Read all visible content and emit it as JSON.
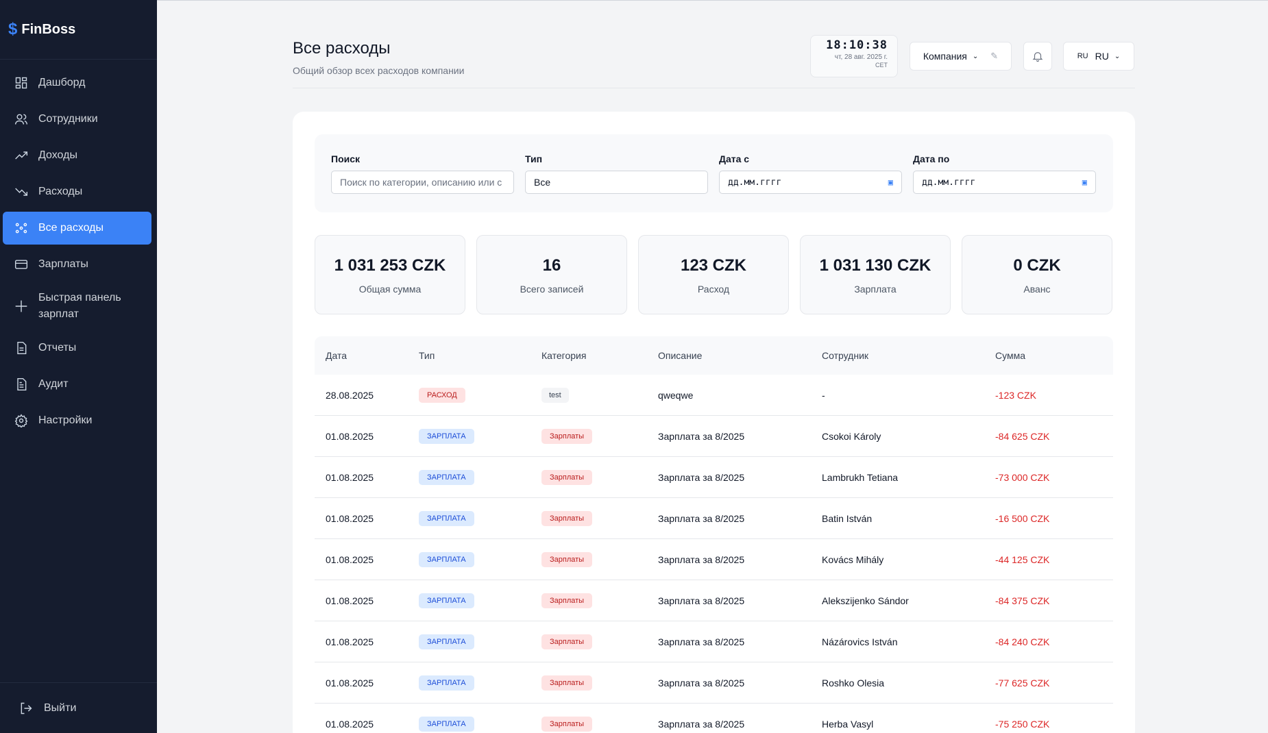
{
  "brand": {
    "symbol": "$",
    "name": "FinBoss"
  },
  "sidebar": {
    "items": [
      {
        "label": "Дашборд",
        "icon": "dashboard-icon"
      },
      {
        "label": "Сотрудники",
        "icon": "users-icon"
      },
      {
        "label": "Доходы",
        "icon": "trending-up-icon"
      },
      {
        "label": "Расходы",
        "icon": "trending-down-icon"
      },
      {
        "label": "Все расходы",
        "icon": "network-icon",
        "active": true
      },
      {
        "label": "Зарплаты",
        "icon": "card-icon"
      },
      {
        "label": "Быстрая панель зарплат",
        "icon": "sparkle-icon"
      },
      {
        "label": "Отчеты",
        "icon": "document-icon"
      },
      {
        "label": "Аудит",
        "icon": "audit-icon"
      },
      {
        "label": "Настройки",
        "icon": "gear-icon"
      }
    ],
    "logout": "Выйти"
  },
  "header": {
    "title": "Все расходы",
    "subtitle": "Общий обзор всех расходов компании",
    "clock": {
      "time": "18:10:38",
      "date": "чт, 28 авг. 2025 г.",
      "tz": "CET"
    },
    "company_label": "Компания",
    "lang_flag": "RU",
    "lang_label": "RU"
  },
  "filters": {
    "search": {
      "label": "Поиск",
      "placeholder": "Поиск по категории, описанию или с"
    },
    "type": {
      "label": "Тип",
      "value": "Все"
    },
    "date_from": {
      "label": "Дата с",
      "placeholder": "дд.мм.гггг"
    },
    "date_to": {
      "label": "Дата по",
      "placeholder": "дд.мм.гггг"
    }
  },
  "stats": [
    {
      "value": "1 031 253 CZK",
      "label": "Общая сумма"
    },
    {
      "value": "16",
      "label": "Всего записей"
    },
    {
      "value": "123 CZK",
      "label": "Расход"
    },
    {
      "value": "1 031 130 CZK",
      "label": "Зарплата"
    },
    {
      "value": "0 CZK",
      "label": "Аванс"
    }
  ],
  "table": {
    "headers": [
      "Дата",
      "Тип",
      "Категория",
      "Описание",
      "Сотрудник",
      "Сумма"
    ],
    "rows": [
      {
        "date": "28.08.2025",
        "type": "РАСХОД",
        "category": "test",
        "description": "qweqwe",
        "employee": "-",
        "amount": "-123 CZK"
      },
      {
        "date": "01.08.2025",
        "type": "ЗАРПЛАТА",
        "category": "Зарплаты",
        "description": "Зарплата за 8/2025",
        "employee": "Csokoi Károly",
        "amount": "-84 625 CZK"
      },
      {
        "date": "01.08.2025",
        "type": "ЗАРПЛАТА",
        "category": "Зарплаты",
        "description": "Зарплата за 8/2025",
        "employee": "Lambrukh Tetiana",
        "amount": "-73 000 CZK"
      },
      {
        "date": "01.08.2025",
        "type": "ЗАРПЛАТА",
        "category": "Зарплаты",
        "description": "Зарплата за 8/2025",
        "employee": "Batin István",
        "amount": "-16 500 CZK"
      },
      {
        "date": "01.08.2025",
        "type": "ЗАРПЛАТА",
        "category": "Зарплаты",
        "description": "Зарплата за 8/2025",
        "employee": "Kovács Mihály",
        "amount": "-44 125 CZK"
      },
      {
        "date": "01.08.2025",
        "type": "ЗАРПЛАТА",
        "category": "Зарплаты",
        "description": "Зарплата за 8/2025",
        "employee": "Alekszijenko Sándor",
        "amount": "-84 375 CZK"
      },
      {
        "date": "01.08.2025",
        "type": "ЗАРПЛАТА",
        "category": "Зарплаты",
        "description": "Зарплата за 8/2025",
        "employee": "Názárovics István",
        "amount": "-84 240 CZK"
      },
      {
        "date": "01.08.2025",
        "type": "ЗАРПЛАТА",
        "category": "Зарплаты",
        "description": "Зарплата за 8/2025",
        "employee": "Roshko Olesia",
        "amount": "-77 625 CZK"
      },
      {
        "date": "01.08.2025",
        "type": "ЗАРПЛАТА",
        "category": "Зарплаты",
        "description": "Зарплата за 8/2025",
        "employee": "Herba Vasyl",
        "amount": "-75 250 CZK"
      }
    ]
  },
  "colors": {
    "sidebar_bg": "#151c2e",
    "accent": "#3b82f6",
    "negative": "#dc2626"
  }
}
